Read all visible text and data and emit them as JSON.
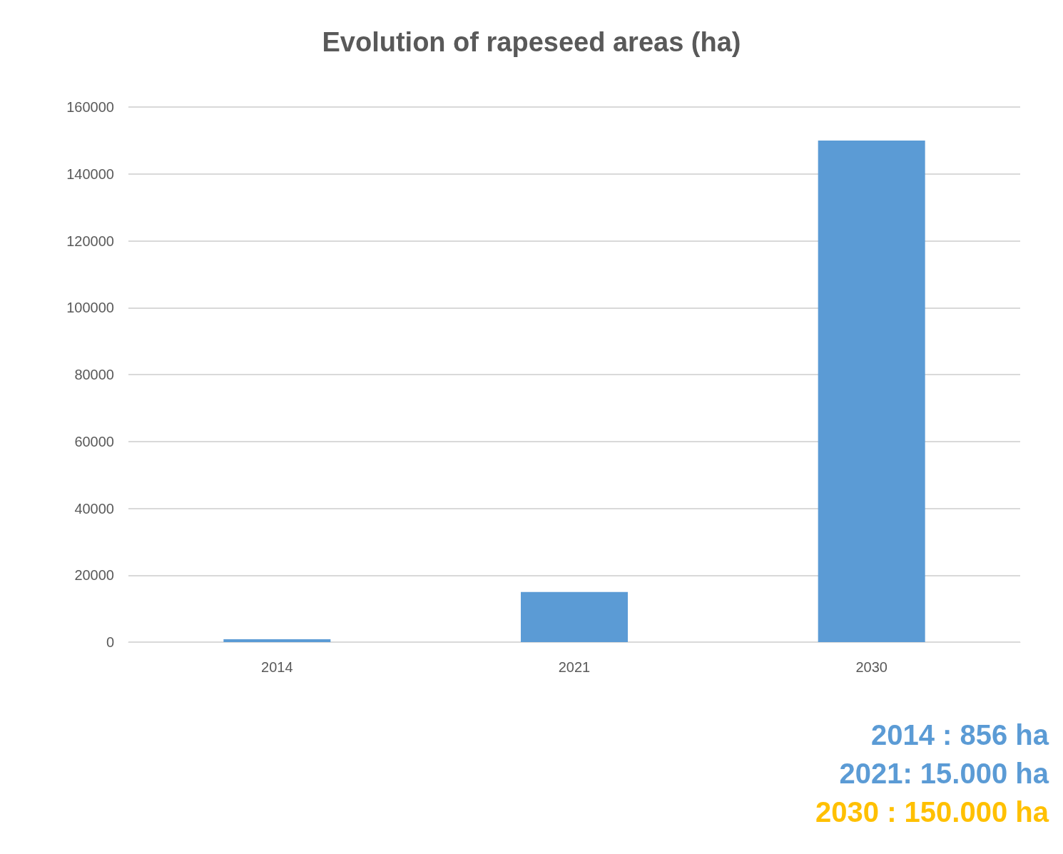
{
  "chart_data": {
    "type": "bar",
    "title": "Evolution of rapeseed areas (ha)",
    "categories": [
      "2014",
      "2021",
      "2030"
    ],
    "values": [
      856,
      15000,
      150000
    ],
    "color": "#5b9bd5",
    "ylim": [
      0,
      160000
    ],
    "yticks": [
      0,
      20000,
      40000,
      60000,
      80000,
      100000,
      120000,
      140000,
      160000
    ],
    "grid": "y",
    "annotations": [
      "2014 : 856 ha",
      "2021: 15.000 ha",
      "2030 : 150.000 ha"
    ]
  }
}
